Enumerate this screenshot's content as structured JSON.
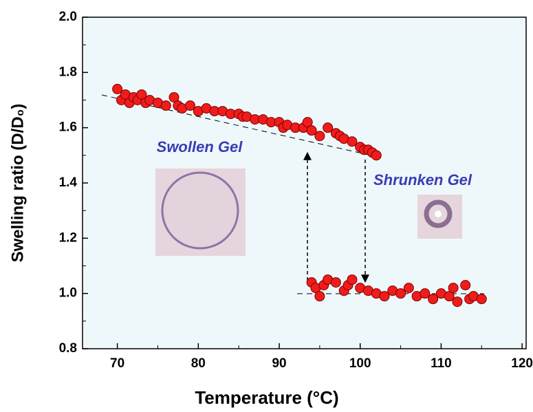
{
  "chart_data": {
    "type": "scatter",
    "xlabel": "Temperature (°C)",
    "ylabel": "Swelling ratio (D/D₀)",
    "annotations": [
      "Swollen Gel",
      "Shrunken Gel"
    ],
    "xlim": [
      65.7,
      120.5
    ],
    "xticks": [
      70,
      80,
      90,
      100,
      110,
      120
    ],
    "xminorticks": [
      75,
      85,
      95,
      105,
      115
    ],
    "ylim": [
      0.8,
      2.0
    ],
    "yticks": [
      {
        "value": 0.8,
        "label": "0.8"
      },
      {
        "value": 1,
        "label": "1.0"
      },
      {
        "value": 1.2,
        "label": "1.2"
      },
      {
        "value": 1.4,
        "label": "1.4"
      },
      {
        "value": 1.6,
        "label": "1.6"
      },
      {
        "value": 1.8,
        "label": "1.8"
      },
      {
        "value": 2,
        "label": "2.0"
      }
    ],
    "yminorticks": [
      0.9,
      1.1,
      1.3,
      1.5,
      1.7,
      1.9
    ],
    "series": [
      {
        "color": "#f01c1c",
        "x": [
          70,
          70.5,
          71,
          71.5,
          72,
          72.5,
          73,
          73.5,
          74,
          75,
          76,
          77,
          77.5,
          78,
          79,
          80,
          81,
          82,
          83,
          84,
          85,
          85.5,
          86,
          87,
          88,
          89,
          90,
          90.5,
          91,
          92,
          93,
          93.5,
          94,
          95,
          96,
          97,
          97.5,
          98,
          99,
          100,
          100.5,
          101,
          101.5,
          102
        ],
        "values": [
          1.74,
          1.7,
          1.72,
          1.69,
          1.71,
          1.7,
          1.72,
          1.69,
          1.7,
          1.69,
          1.68,
          1.71,
          1.68,
          1.67,
          1.68,
          1.66,
          1.67,
          1.66,
          1.66,
          1.65,
          1.65,
          1.64,
          1.64,
          1.63,
          1.63,
          1.62,
          1.62,
          1.6,
          1.61,
          1.6,
          1.6,
          1.62,
          1.59,
          1.57,
          1.6,
          1.58,
          1.57,
          1.56,
          1.55,
          1.53,
          1.52,
          1.52,
          1.51,
          1.5
        ]
      },
      {
        "color": "#f01c1c",
        "x": [
          94,
          94.5,
          95,
          95.5,
          96,
          97,
          98,
          98.5,
          99,
          100,
          101,
          102,
          103,
          104,
          105,
          106,
          107,
          108,
          109,
          110,
          111,
          111.5,
          112,
          113,
          113.5,
          114,
          115
        ],
        "values": [
          1.04,
          1.02,
          0.99,
          1.03,
          1.05,
          1.04,
          1.01,
          1.03,
          1.05,
          1.02,
          1.01,
          1.0,
          0.99,
          1.01,
          1.0,
          1.02,
          0.99,
          1.0,
          0.98,
          1.0,
          0.99,
          1.02,
          0.97,
          1.03,
          0.98,
          0.99,
          0.98
        ]
      }
    ]
  }
}
